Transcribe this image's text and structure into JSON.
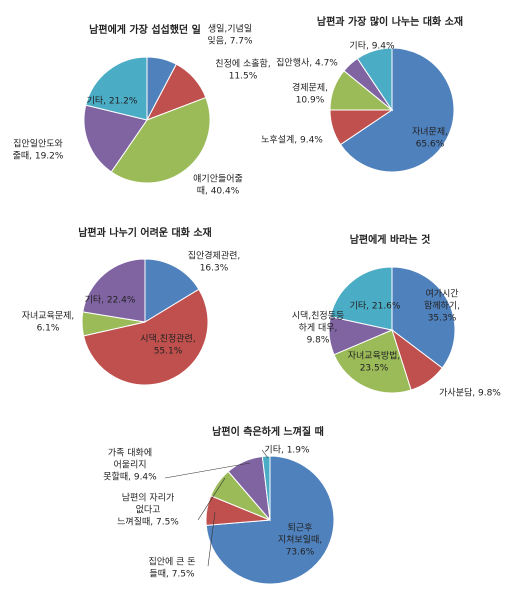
{
  "chart_data": [
    {
      "type": "pie",
      "title": "남편에게 가장 섭섭했던 일",
      "labels": [
        [
          "생일,기념일",
          "잊음, 7.7%"
        ],
        [
          "친정에 소홀함,",
          "11.5%"
        ],
        [
          "얘기안들어줄",
          "때, 40.4%"
        ],
        [
          "집안일안도와",
          "줄때, 19.2%"
        ],
        [
          "기타, 21.2%"
        ]
      ],
      "values": [
        7.7,
        11.5,
        40.4,
        19.2,
        21.2
      ],
      "colors": [
        "#4f81bd",
        "#c0504d",
        "#9bbb59",
        "#8064a2",
        "#4bacc6"
      ]
    },
    {
      "type": "pie",
      "title": "남편과 가장 많이 나누는 대화 소재",
      "labels": [
        [
          "자녀문제,",
          "65.6%"
        ],
        [
          "노후설계, 9.4%"
        ],
        [
          "경제문제,",
          "10.9%"
        ],
        [
          "집안행사, 4.7%"
        ],
        [
          "기타, 9.4%"
        ]
      ],
      "values": [
        65.6,
        9.4,
        10.9,
        4.7,
        9.4
      ],
      "colors": [
        "#4f81bd",
        "#c0504d",
        "#9bbb59",
        "#8064a2",
        "#4bacc6"
      ]
    },
    {
      "type": "pie",
      "title": "남편과 나누기 어려운 대화 소재",
      "labels": [
        [
          "집안경제관련,",
          "16.3%"
        ],
        [
          "시댁,친정관련,",
          "55.1%"
        ],
        [
          "자녀교육문제,",
          "6.1%"
        ],
        [
          "기타, 22.4%"
        ]
      ],
      "values": [
        16.3,
        55.1,
        6.1,
        22.4
      ],
      "colors": [
        "#4f81bd",
        "#c0504d",
        "#9bbb59",
        "#8064a2"
      ]
    },
    {
      "type": "pie",
      "title": "남편에게 바라는 것",
      "labels": [
        [
          "여가시간",
          "함께하기,",
          "35.3%"
        ],
        [
          "가사분담, 9.8%"
        ],
        [
          "자녀교육방법,",
          "23.5%"
        ],
        [
          "시댁,친정등등",
          "하게 대우,",
          "9.8%"
        ],
        [
          "기타, 21.6%"
        ]
      ],
      "values": [
        35.3,
        9.8,
        23.5,
        9.8,
        21.6
      ],
      "colors": [
        "#4f81bd",
        "#c0504d",
        "#9bbb59",
        "#8064a2",
        "#4bacc6"
      ]
    },
    {
      "type": "pie",
      "title": "남편이 측은하게 느껴질 때",
      "labels": [
        [
          "퇴근후",
          "지쳐보일때,",
          "73.6%"
        ],
        [
          "집안에 큰 돈",
          "들때, 7.5%"
        ],
        [
          "남편의 자리가",
          "없다고",
          "느껴질때, 7.5%"
        ],
        [
          "가족 대화에",
          "어울리지",
          "못할때, 9.4%"
        ],
        [
          "기타, 1.9%"
        ]
      ],
      "values": [
        73.6,
        7.5,
        7.5,
        9.4,
        1.9
      ],
      "colors": [
        "#4f81bd",
        "#c0504d",
        "#9bbb59",
        "#8064a2",
        "#4bacc6"
      ]
    }
  ]
}
